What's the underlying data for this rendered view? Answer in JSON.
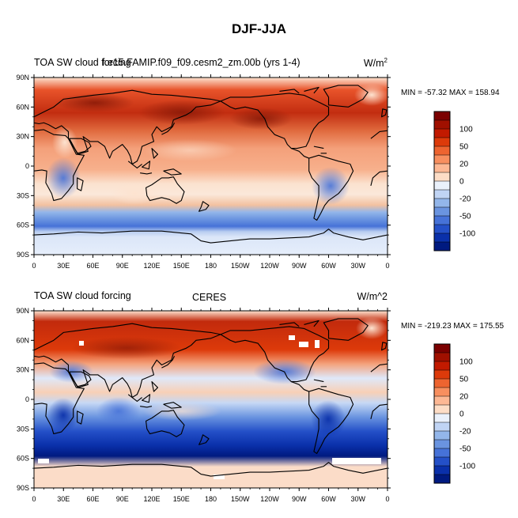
{
  "title": "DJF-JJA",
  "panels": [
    {
      "left_title": "TOA SW cloud forcing",
      "center_title": "f.e15.FAMIP.f09_f09.cesm2_zm.00b (yrs 1-4)",
      "units": "W/m",
      "units_sup": "2",
      "stats": "MIN = -57.32 MAX = 158.94"
    },
    {
      "left_title": "TOA SW cloud forcing",
      "center_title": "CERES",
      "units": "W/m^2",
      "units_sup": "",
      "stats": "MIN = -219.23 MAX = 175.55"
    }
  ],
  "map_data": {
    "type": "contour-map",
    "projection": "cylindrical-equidistant",
    "lon_range": [
      0,
      360
    ],
    "lat_range": [
      -90,
      90
    ],
    "lat_ticks": [
      "90N",
      "60N",
      "30N",
      "0",
      "30S",
      "60S",
      "90S"
    ],
    "lon_ticks": [
      "0",
      "30E",
      "60E",
      "90E",
      "120E",
      "150E",
      "180",
      "150W",
      "120W",
      "90W",
      "60W",
      "30W",
      "0"
    ]
  },
  "colorbar": {
    "labels": [
      "100",
      "50",
      "20",
      "0",
      "-20",
      "-50",
      "-100"
    ],
    "colors": [
      "#7b0000",
      "#a01000",
      "#c21a00",
      "#dd3a0a",
      "#ee6430",
      "#f88f5f",
      "#fdb894",
      "#fdddc6",
      "#eaf1fb",
      "#c0d4f4",
      "#93b6ea",
      "#6a94e0",
      "#4672d8",
      "#2450c8",
      "#0a30aa",
      "#001a80"
    ]
  }
}
